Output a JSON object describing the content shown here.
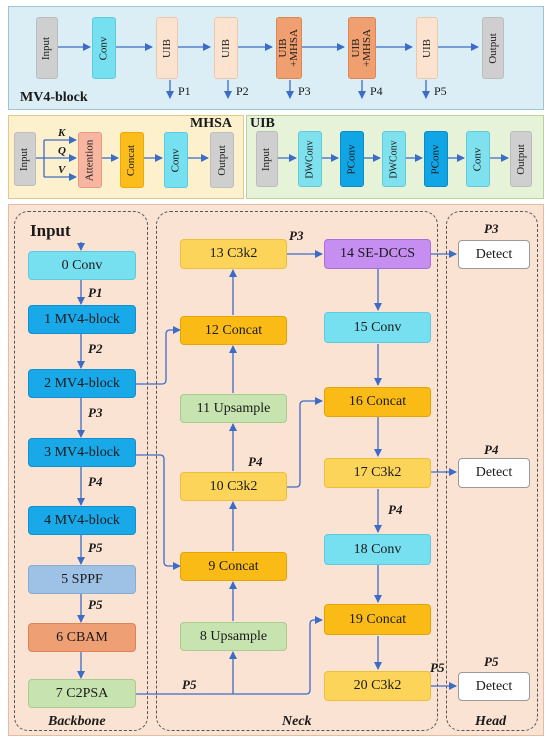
{
  "mv4": {
    "title": "MV4-block",
    "boxes": [
      "Input",
      "Conv",
      "UIB",
      "UIB",
      "UIB\n+MHSA",
      "UIB\n+MHSA",
      "UIB",
      "Output"
    ],
    "outputs": [
      "P1",
      "P2",
      "P3",
      "P4",
      "P5"
    ]
  },
  "mhsa": {
    "title": "MHSA",
    "boxes": [
      "Input",
      "Attention",
      "Concat",
      "Conv",
      "Output"
    ],
    "qkv": [
      "K",
      "Q",
      "V"
    ]
  },
  "uib": {
    "title": "UIB",
    "boxes": [
      "Input",
      "DWConv",
      "PConv",
      "DWConv",
      "PConv",
      "Conv",
      "Output"
    ]
  },
  "backbone": {
    "title": "Backbone",
    "input": "Input",
    "nodes": [
      "0 Conv",
      "1 MV4-block",
      "2 MV4-block",
      "3 MV4-block",
      "4 MV4-block",
      "5 SPPF",
      "6 CBAM",
      "7 C2PSA"
    ],
    "edge_labels": [
      "P1",
      "P2",
      "P3",
      "P4",
      "P5",
      "P5",
      "P5"
    ]
  },
  "neck": {
    "title": "Neck",
    "nodes": [
      "8 Upsample",
      "9 Concat",
      "10 C3k2",
      "11 Upsample",
      "12 Concat",
      "13 C3k2",
      "14 SE-DCCS",
      "15 Conv",
      "16 Concat",
      "17 C3k2",
      "18 Conv",
      "19 Concat",
      "20 C3k2"
    ],
    "edge_labels": [
      "P3",
      "P4",
      "P4",
      "P5"
    ]
  },
  "head": {
    "title": "Head",
    "nodes": [
      "Detect",
      "Detect",
      "Detect"
    ],
    "labels": [
      "P3",
      "P4",
      "P5"
    ]
  },
  "colors": {
    "top_panel": "#dbeef5",
    "mhsa_panel": "#fdf0cc",
    "uib_panel": "#e6f3d9",
    "main_panel": "#fbe3d3",
    "arrow": "#3d6cc6"
  }
}
